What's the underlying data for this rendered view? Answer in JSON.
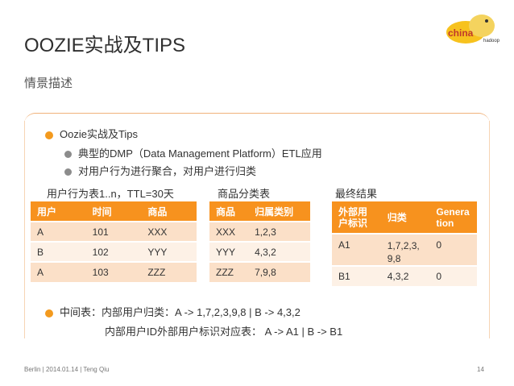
{
  "slide": {
    "title": "OOZIE实战及TIPS",
    "subtitle": "情景描述",
    "logo_text": "china",
    "bullet_main": "Oozie实战及Tips",
    "bullet_sub1": "典型的DMP（Data Management Platform）ETL应用",
    "bullet_sub2": "对用户行为进行聚合，对用户进行归类",
    "bottom_line1": "中间表：内部用户归类：A -> 1,7,2,3,9,8  |  B -> 4,3,2",
    "bottom_line2": "内部用户ID外部用户标识对应表： A -> A1  |  B -> B1",
    "footer": "Berlin | 2014.01.14 | Teng Qiu",
    "page_number": "14"
  },
  "table1": {
    "caption": "用户行为表1..n，TTL=30天",
    "headers": [
      "用户",
      "时间",
      "商品"
    ],
    "rows": [
      [
        "A",
        "101",
        "XXX"
      ],
      [
        "B",
        "102",
        "YYY"
      ],
      [
        "A",
        "103",
        "ZZZ"
      ]
    ]
  },
  "table2": {
    "caption": "商品分类表",
    "headers": [
      "商品",
      "归属类别"
    ],
    "rows": [
      [
        "XXX",
        "1,2,3"
      ],
      [
        "YYY",
        "4,3,2"
      ],
      [
        "ZZZ",
        "7,9,8"
      ]
    ]
  },
  "table3": {
    "caption": "最终结果",
    "headers": [
      "外部用户标识",
      "归类",
      "Generation"
    ],
    "rows": [
      [
        "A1",
        "1,7,2,3,9,8",
        "0"
      ],
      [
        "B1",
        "4,3,2",
        "0"
      ]
    ]
  },
  "colors": {
    "accent": "#f7921e",
    "row_dark": "#fbe0c8",
    "row_light": "#fdf1e6"
  }
}
